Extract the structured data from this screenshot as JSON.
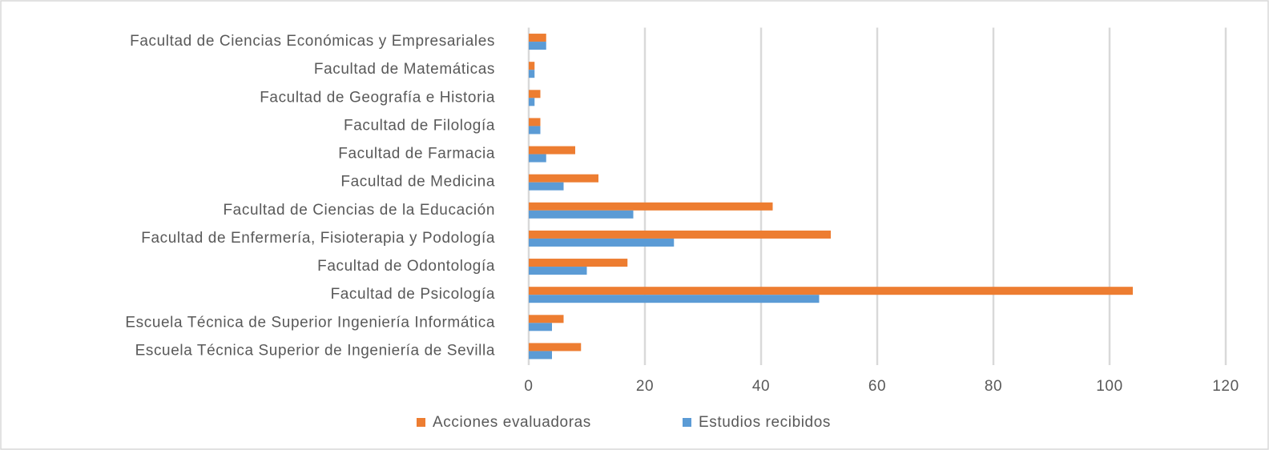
{
  "chart_data": {
    "type": "hbar",
    "categories": [
      "Facultad de Ciencias Económicas y Empresariales",
      "Facultad de Matemáticas",
      "Facultad de Geografía e Historia",
      "Facultad de Filología",
      "Facultad de Farmacia",
      "Facultad de Medicina",
      "Facultad de Ciencias de la Educación",
      "Facultad de Enfermería, Fisioterapia y Podología",
      "Facultad de Odontología",
      "Facultad de Psicología",
      "Escuela Técnica de Superior Ingeniería Informática",
      "Escuela Técnica Superior de Ingeniería de Sevilla"
    ],
    "series": [
      {
        "name": "Acciones evaluadoras",
        "color": "#ed7d31",
        "values": [
          3,
          1,
          2,
          2,
          8,
          12,
          42,
          52,
          17,
          104,
          6,
          9
        ]
      },
      {
        "name": "Estudios recibidos",
        "color": "#5b9bd5",
        "values": [
          3,
          1,
          1,
          2,
          3,
          6,
          18,
          25,
          10,
          50,
          4,
          4
        ]
      }
    ],
    "xlim": [
      0,
      120
    ],
    "xticks": [
      0,
      20,
      40,
      60,
      80,
      100,
      120
    ],
    "grid": true,
    "legend": "bottom"
  }
}
